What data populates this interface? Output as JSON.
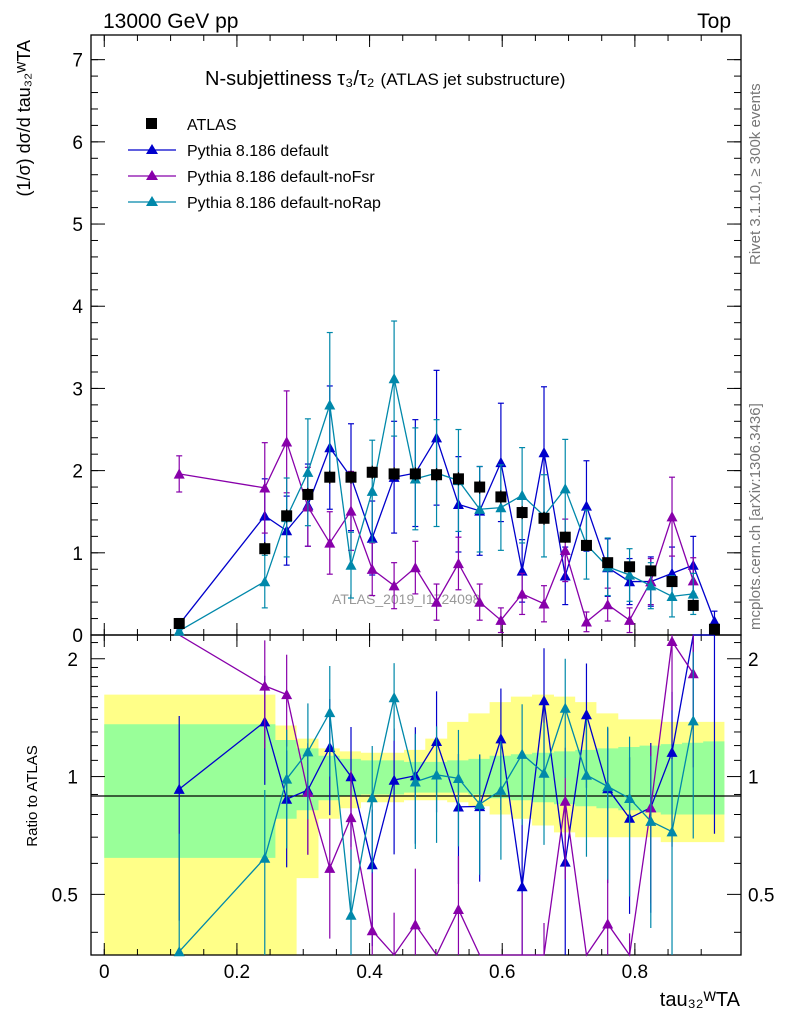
{
  "header": {
    "left": "13000 GeV pp",
    "right": "Top"
  },
  "side_labels": {
    "rivet": "Rivet 3.1.10, ≥ 300k events",
    "mcplots": "mcplots.cern.ch [arXiv:1306.3436]"
  },
  "chart_data": {
    "type": "scatter",
    "title": "N-subjettiness τ₃/τ₂",
    "title_note": "(ATLAS jet substructure)",
    "watermark": "ATLAS_2019_I1724098",
    "xlabel": "tau₃₂ᵂTA",
    "ylabel": "(1/σ) dσ/d tau₃₂ᵂTA",
    "ratio_ylabel": "Ratio to ATLAS",
    "xlim": [
      -0.02,
      0.96
    ],
    "ylim": [
      0,
      7.3
    ],
    "ratio_ylim": [
      0.35,
      2.3
    ],
    "x_ticks": [
      0,
      0.2,
      0.4,
      0.6,
      0.8
    ],
    "x_tick_labels": [
      "0",
      "0.2",
      "0.4",
      "0.6",
      "0.8"
    ],
    "y_ticks": [
      0,
      1,
      2,
      3,
      4,
      5,
      6,
      7
    ],
    "y_tick_labels": [
      "0",
      "1",
      "2",
      "3",
      "4",
      "5",
      "6",
      "7"
    ],
    "ratio_ticks": [
      0.5,
      1,
      2
    ],
    "ratio_tick_labels": [
      "0.5",
      "1",
      "2"
    ],
    "data": {
      "name": "ATLAS",
      "color": "#000000",
      "x": [
        0.113,
        0.242,
        0.275,
        0.307,
        0.34,
        0.372,
        0.404,
        0.437,
        0.469,
        0.501,
        0.534,
        0.566,
        0.598,
        0.63,
        0.663,
        0.695,
        0.727,
        0.759,
        0.792,
        0.824,
        0.856,
        0.888,
        0.92
      ],
      "y": [
        0.14,
        1.05,
        1.45,
        1.71,
        1.92,
        1.92,
        1.98,
        1.96,
        1.96,
        1.95,
        1.9,
        1.8,
        1.68,
        1.49,
        1.42,
        1.19,
        1.09,
        0.88,
        0.83,
        0.78,
        0.65,
        0.36,
        0.07
      ],
      "err": [
        0.03,
        0.08,
        0.08,
        0.08,
        0.08,
        0.08,
        0.08,
        0.08,
        0.08,
        0.08,
        0.08,
        0.08,
        0.08,
        0.08,
        0.08,
        0.07,
        0.07,
        0.06,
        0.06,
        0.06,
        0.05,
        0.04,
        0.03
      ],
      "band_edges": [
        0,
        0.226,
        0.258,
        0.29,
        0.323,
        0.355,
        0.387,
        0.42,
        0.452,
        0.484,
        0.517,
        0.549,
        0.581,
        0.613,
        0.645,
        0.678,
        0.71,
        0.742,
        0.775,
        0.807,
        0.839,
        0.871,
        0.903,
        0.935
      ],
      "band_inner_lo": [
        0.62,
        0.62,
        0.78,
        0.82,
        0.87,
        0.89,
        0.9,
        0.9,
        0.91,
        0.91,
        0.91,
        0.9,
        0.88,
        0.87,
        0.86,
        0.85,
        0.84,
        0.83,
        0.82,
        0.81,
        0.8,
        0.8,
        0.8
      ],
      "band_inner_hi": [
        1.36,
        1.36,
        1.24,
        1.18,
        1.13,
        1.11,
        1.1,
        1.1,
        1.09,
        1.09,
        1.1,
        1.11,
        1.13,
        1.14,
        1.15,
        1.16,
        1.17,
        1.18,
        1.19,
        1.2,
        1.21,
        1.22,
        1.23
      ],
      "band_outer_lo": [
        0.3,
        0.3,
        0.35,
        0.55,
        0.78,
        0.83,
        0.86,
        0.86,
        0.87,
        0.87,
        0.86,
        0.84,
        0.8,
        0.78,
        0.75,
        0.72,
        0.7,
        0.7,
        0.7,
        0.7,
        0.68,
        0.68,
        0.68
      ],
      "band_outer_hi": [
        1.62,
        1.62,
        1.35,
        1.25,
        1.18,
        1.16,
        1.15,
        1.15,
        1.17,
        1.25,
        1.38,
        1.45,
        1.55,
        1.6,
        1.62,
        1.6,
        1.55,
        1.45,
        1.4,
        1.4,
        1.38,
        1.38,
        1.38
      ]
    },
    "series": [
      {
        "name": "Pythia 8.186 default",
        "color": "#0000cc",
        "x": [
          0.113,
          0.242,
          0.275,
          0.307,
          0.34,
          0.372,
          0.404,
          0.437,
          0.469,
          0.501,
          0.534,
          0.566,
          0.598,
          0.63,
          0.663,
          0.695,
          0.727,
          0.759,
          0.792,
          0.824,
          0.856,
          0.888,
          0.92
        ],
        "y": [
          0.13,
          1.45,
          1.27,
          1.58,
          2.28,
          1.92,
          1.18,
          1.92,
          1.97,
          2.4,
          1.59,
          1.51,
          2.1,
          0.78,
          2.22,
          0.72,
          1.57,
          0.82,
          0.65,
          0.65,
          0.75,
          0.85,
          0.17
        ],
        "err": [
          0.07,
          0.45,
          0.42,
          0.5,
          0.75,
          0.65,
          0.45,
          0.68,
          0.65,
          0.82,
          0.58,
          0.54,
          0.72,
          0.38,
          0.8,
          0.35,
          0.55,
          0.35,
          0.28,
          0.3,
          0.32,
          0.35,
          0.12
        ]
      },
      {
        "name": "Pythia 8.186 default-noFsr",
        "color": "#8800aa",
        "x": [
          0.113,
          0.242,
          0.275,
          0.307,
          0.34,
          0.372,
          0.404,
          0.437,
          0.469,
          0.501,
          0.534,
          0.566,
          0.598,
          0.63,
          0.663,
          0.695,
          0.727,
          0.759,
          0.792,
          0.824,
          0.856,
          0.888
        ],
        "y": [
          1.96,
          1.79,
          2.35,
          1.56,
          1.12,
          1.51,
          0.8,
          0.6,
          0.82,
          0.4,
          0.87,
          0.4,
          0.18,
          0.5,
          0.38,
          1.03,
          0.16,
          0.37,
          0.18,
          0.65,
          1.44,
          0.66
        ],
        "err": [
          0.22,
          0.55,
          0.62,
          0.48,
          0.38,
          0.48,
          0.32,
          0.28,
          0.32,
          0.22,
          0.32,
          0.22,
          0.15,
          0.25,
          0.22,
          0.38,
          0.12,
          0.2,
          0.15,
          0.28,
          0.48,
          0.28
        ]
      },
      {
        "name": "Pythia 8.186 default-noRap",
        "color": "#0088aa",
        "x": [
          0.113,
          0.242,
          0.275,
          0.307,
          0.34,
          0.372,
          0.404,
          0.437,
          0.469,
          0.501,
          0.534,
          0.566,
          0.598,
          0.63,
          0.663,
          0.695,
          0.727,
          0.759,
          0.792,
          0.824,
          0.856,
          0.888
        ],
        "y": [
          0.05,
          0.65,
          1.43,
          1.98,
          2.8,
          0.85,
          1.75,
          3.12,
          1.9,
          1.97,
          1.88,
          1.53,
          1.55,
          1.7,
          1.45,
          1.78,
          1.1,
          0.83,
          0.73,
          0.6,
          0.47,
          0.5
        ],
        "err": [
          0.05,
          0.32,
          0.48,
          0.65,
          0.88,
          0.4,
          0.62,
          0.7,
          0.62,
          0.65,
          0.62,
          0.52,
          0.52,
          0.58,
          0.5,
          0.6,
          0.42,
          0.35,
          0.32,
          0.28,
          0.25,
          0.25
        ]
      }
    ]
  }
}
